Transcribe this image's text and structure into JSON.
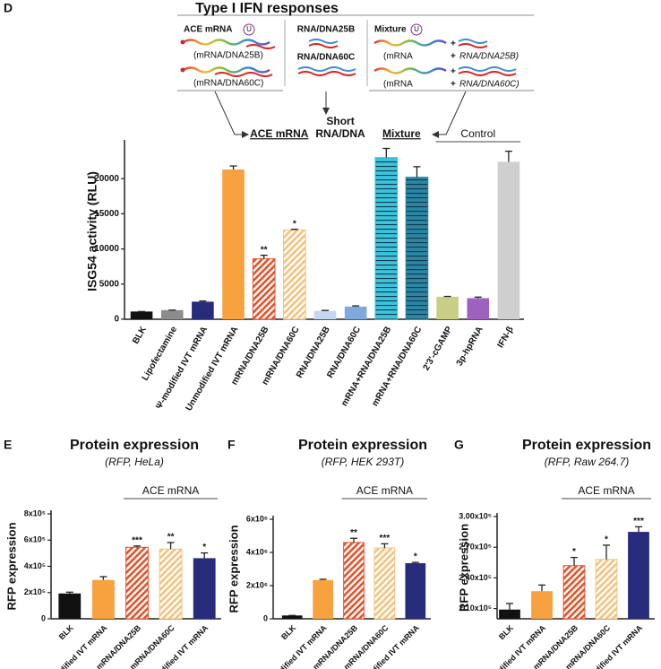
{
  "schematic": {
    "ace_title": "ACE mRNA",
    "mod_mark": "U",
    "ace_25b": "(mRNA/DNA25B)",
    "ace_60c": "(mRNA/DNA60C)",
    "short_25b": "RNA/DNA25B",
    "short_60c": "RNA/DNA60C",
    "mix_title": "Mixture",
    "mix_mrna": "(mRNA",
    "plus": "+",
    "mix_25b": "RNA/DNA25B)",
    "mix_60c": "RNA/DNA60C)"
  },
  "chart_data": [
    {
      "type": "bar",
      "panel": "D",
      "title": "Type I IFN responses",
      "y_label": "ISG54 activity (RLU)",
      "categories": [
        "BLK",
        "Lipofectamine",
        "Ψ-modified IVT mRNA",
        "Unmodified IVT mRNA",
        "mRNA/DNA25B",
        "mRNA/DNA60C",
        "RNA/DNA25B",
        "RNA/DNA60C",
        "mRNA+RNA/DNA25B",
        "mRNA+RNA/DNA60C",
        "2'3'-cGAMP",
        "3p-hpRNA",
        "IFN-β"
      ],
      "values": [
        1100,
        1300,
        2500,
        21300,
        8600,
        12700,
        1200,
        1800,
        23000,
        20200,
        3200,
        3000,
        22400
      ],
      "errors": [
        0,
        0,
        100,
        500,
        500,
        100,
        50,
        100,
        1300,
        1500,
        50,
        150,
        1500
      ],
      "colors": [
        "#111111",
        "#8c8c8c",
        "#262b7a",
        "#f7a23e",
        "#e4522a",
        "#f4c27e",
        "#c5d7f0",
        "#7fa9dc",
        "#39c4dc",
        "#2a86a3",
        "#c8cf84",
        "#9c62bd",
        "#cfcfcf"
      ],
      "hatch": [
        null,
        null,
        null,
        null,
        "diagonal",
        "diagonal",
        null,
        null,
        "horizontal",
        "horizontal",
        null,
        null,
        null
      ],
      "significance": [
        null,
        null,
        null,
        null,
        "**",
        "*",
        null,
        null,
        null,
        null,
        null,
        null,
        null
      ],
      "groups": [
        {
          "label": [
            "ACE mRNA"
          ],
          "first": 4,
          "last": 5,
          "underline": true
        },
        {
          "label": [
            "Short",
            "RNA/DNA"
          ],
          "first": 6,
          "last": 7
        },
        {
          "label": [
            "Mixture"
          ],
          "first": 8,
          "last": 9,
          "underline": true
        },
        {
          "label": [
            "Control"
          ],
          "first": 10,
          "last": 12,
          "line": true,
          "plain": true
        }
      ],
      "ylim": [
        0,
        25000
      ],
      "yticks": [
        0,
        5000,
        10000,
        15000,
        20000
      ]
    },
    {
      "type": "bar",
      "panel": "E",
      "title": "Protein expression",
      "subtitle": "(RFP, HeLa)",
      "y_label": "RFP expression",
      "categories": [
        "BLK",
        "Unmodified IVT mRNA",
        "mRNA/DNA25B",
        "mRNA/DNA60C",
        "Ψ-modified IVT mRNA"
      ],
      "values": [
        193000,
        296000,
        545000,
        531000,
        462000
      ],
      "errors": [
        10000,
        25000,
        10000,
        50000,
        40000
      ],
      "colors": [
        "#111111",
        "#f7a23e",
        "#e4522a",
        "#f4c27e",
        "#262b7a"
      ],
      "hatch": [
        null,
        null,
        "diagonal",
        "diagonal",
        null
      ],
      "significance": [
        null,
        null,
        "***",
        "**",
        "*"
      ],
      "groups": [
        {
          "label": [
            "ACE mRNA"
          ],
          "first": 2,
          "last": 4,
          "line": true,
          "plain": true
        }
      ],
      "ylim": [
        0,
        800000
      ],
      "yticks": [
        0,
        {
          "value": 200000,
          "label": "2x10⁵"
        },
        {
          "value": 400000,
          "label": "4x10⁵"
        },
        {
          "value": 600000,
          "label": "6x10⁵"
        },
        {
          "value": 800000,
          "label": "8x10⁵"
        }
      ]
    },
    {
      "type": "bar",
      "panel": "F",
      "title": "Protein expression",
      "subtitle": "(RFP, HEK 293T)",
      "y_label": "RFP expression",
      "categories": [
        "BLK",
        "Unmodified IVT mRNA",
        "mRNA/DNA25B",
        "mRNA/DNA60C",
        "Ψ-modified IVT mRNA"
      ],
      "values": [
        200000,
        2330000,
        4600000,
        4270000,
        3350000
      ],
      "errors": [
        0,
        50000,
        250000,
        250000,
        50000
      ],
      "colors": [
        "#111111",
        "#f7a23e",
        "#e4522a",
        "#f4c27e",
        "#262b7a"
      ],
      "hatch": [
        null,
        null,
        "diagonal",
        "diagonal",
        null
      ],
      "significance": [
        null,
        null,
        "**",
        "***",
        "*"
      ],
      "groups": [
        {
          "label": [
            "ACE mRNA"
          ],
          "first": 2,
          "last": 4,
          "line": true,
          "plain": true
        }
      ],
      "ylim": [
        0,
        6000000
      ],
      "yticks": [
        0,
        {
          "value": 2000000,
          "label": "2x10⁶"
        },
        {
          "value": 4000000,
          "label": "4x10⁶"
        },
        {
          "value": 6000000,
          "label": "6x10⁶"
        }
      ]
    },
    {
      "type": "bar",
      "panel": "G",
      "title": "Protein expression",
      "subtitle": "(RFP, Raw 264.7)",
      "y_label": "RFP expression",
      "categories": [
        "BLK",
        "Unmodified IVT mRNA",
        "mRNA/DNA25B",
        "mRNA/DNA60C",
        "Ψ-modified IVT mRNA"
      ],
      "values": [
        209000,
        227000,
        252000,
        258000,
        285000
      ],
      "errors": [
        6000,
        6000,
        8000,
        14000,
        5000
      ],
      "colors": [
        "#111111",
        "#f7a23e",
        "#e4522a",
        "#f4c27e",
        "#262b7a"
      ],
      "hatch": [
        null,
        null,
        "diagonal",
        "diagonal",
        null
      ],
      "significance": [
        null,
        null,
        "*",
        "*",
        "***"
      ],
      "groups": [
        {
          "label": [
            "ACE mRNA"
          ],
          "first": 2,
          "last": 4,
          "line": true,
          "plain": true
        }
      ],
      "ylim": [
        200000,
        300000
      ],
      "yticks": [
        {
          "value": 210000,
          "label": "2.10x10⁵"
        },
        {
          "value": 240000,
          "label": "2.40x10⁵"
        },
        {
          "value": 270000,
          "label": "2.70x10⁵"
        },
        {
          "value": 300000,
          "label": "3.00x10⁵"
        }
      ]
    }
  ]
}
